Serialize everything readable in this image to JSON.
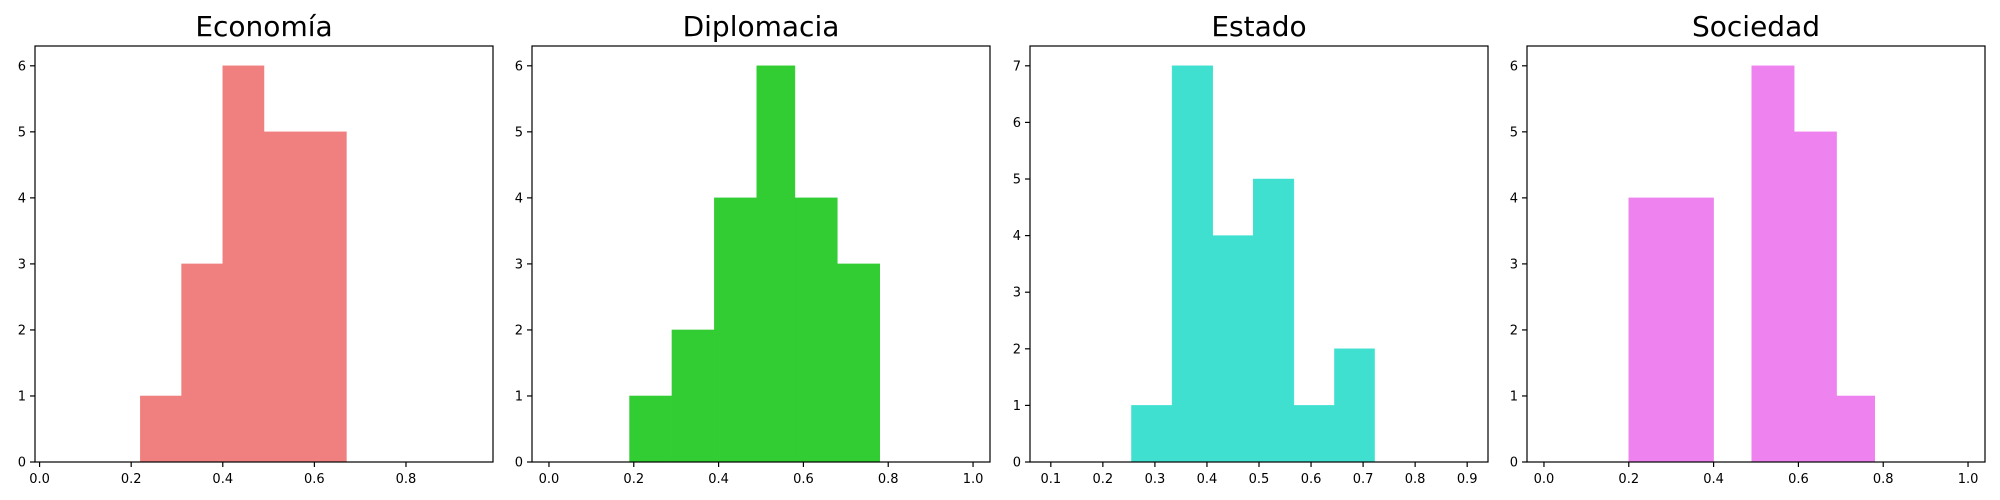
{
  "chart_data": [
    {
      "type": "bar",
      "title": "Economía",
      "color": "#f08080",
      "xlim": [
        -0.01,
        0.99
      ],
      "ylim": [
        0,
        6.3
      ],
      "xticks": [
        0.0,
        0.2,
        0.4,
        0.6,
        0.8
      ],
      "xtick_labels": [
        "0.0",
        "0.2",
        "0.4",
        "0.6",
        "0.8"
      ],
      "yticks": [
        0,
        1,
        2,
        3,
        4,
        5,
        6
      ],
      "ytick_labels": [
        "0",
        "1",
        "2",
        "3",
        "4",
        "5",
        "6"
      ],
      "bins": [
        [
          0.22,
          0.31,
          1
        ],
        [
          0.31,
          0.4,
          3
        ],
        [
          0.4,
          0.49,
          6
        ],
        [
          0.49,
          0.58,
          5
        ],
        [
          0.58,
          0.67,
          5
        ]
      ]
    },
    {
      "type": "bar",
      "title": "Diplomacia",
      "color": "#32cd32",
      "xlim": [
        -0.04,
        1.04
      ],
      "ylim": [
        0,
        6.3
      ],
      "xticks": [
        0.0,
        0.2,
        0.4,
        0.6,
        0.8,
        1.0
      ],
      "xtick_labels": [
        "0.0",
        "0.2",
        "0.4",
        "0.6",
        "0.8",
        "1.0"
      ],
      "yticks": [
        0,
        1,
        2,
        3,
        4,
        5,
        6
      ],
      "ytick_labels": [
        "0",
        "1",
        "2",
        "3",
        "4",
        "5",
        "6"
      ],
      "bins": [
        [
          0.19,
          0.29,
          1
        ],
        [
          0.29,
          0.39,
          2
        ],
        [
          0.39,
          0.49,
          4
        ],
        [
          0.49,
          0.58,
          6
        ],
        [
          0.58,
          0.68,
          4
        ],
        [
          0.68,
          0.78,
          3
        ]
      ]
    },
    {
      "type": "bar",
      "title": "Estado",
      "color": "#40e0d0",
      "xlim": [
        0.06,
        0.94
      ],
      "ylim": [
        0,
        7.35
      ],
      "xticks": [
        0.1,
        0.2,
        0.3,
        0.4,
        0.5,
        0.6,
        0.7,
        0.8,
        0.9
      ],
      "xtick_labels": [
        "0.1",
        "0.2",
        "0.3",
        "0.4",
        "0.5",
        "0.6",
        "0.7",
        "0.8",
        "0.9"
      ],
      "yticks": [
        0,
        1,
        2,
        3,
        4,
        5,
        6,
        7
      ],
      "ytick_labels": [
        "0",
        "1",
        "2",
        "3",
        "4",
        "5",
        "6",
        "7"
      ],
      "bins": [
        [
          0.255,
          0.333,
          1
        ],
        [
          0.333,
          0.411,
          7
        ],
        [
          0.411,
          0.489,
          4
        ],
        [
          0.489,
          0.567,
          5
        ],
        [
          0.567,
          0.645,
          1
        ],
        [
          0.645,
          0.722,
          2
        ]
      ]
    },
    {
      "type": "bar",
      "title": "Sociedad",
      "color": "#ee82ee",
      "xlim": [
        -0.04,
        1.04
      ],
      "ylim": [
        0,
        6.3
      ],
      "xticks": [
        0.0,
        0.2,
        0.4,
        0.6,
        0.8,
        1.0
      ],
      "xtick_labels": [
        "0.0",
        "0.2",
        "0.4",
        "0.6",
        "0.8",
        "1.0"
      ],
      "yticks": [
        0,
        1,
        2,
        3,
        4,
        5,
        6
      ],
      "ytick_labels": [
        "0",
        "1",
        "2",
        "3",
        "4",
        "5",
        "6"
      ],
      "bins": [
        [
          0.2,
          0.3,
          4
        ],
        [
          0.3,
          0.4,
          4
        ],
        [
          0.4,
          0.49,
          0
        ],
        [
          0.49,
          0.59,
          6
        ],
        [
          0.59,
          0.69,
          5
        ],
        [
          0.69,
          0.78,
          1
        ]
      ]
    }
  ]
}
